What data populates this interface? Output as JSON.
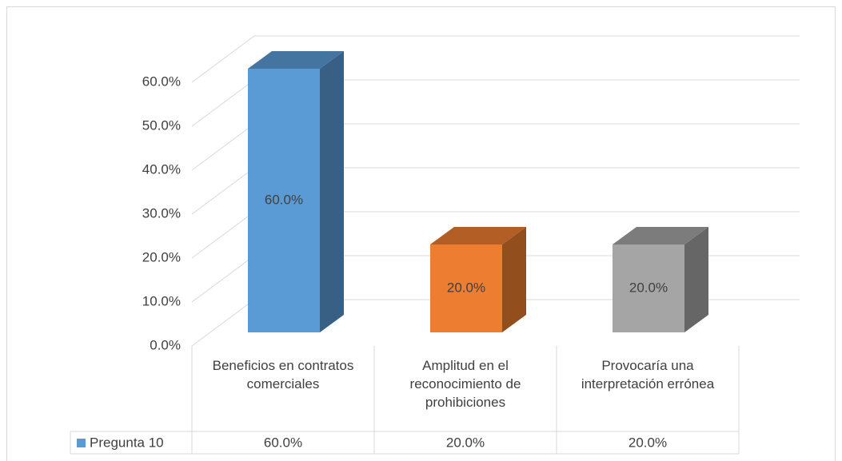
{
  "chart_data": {
    "type": "bar3d",
    "categories": [
      "Beneficios en contratos comerciales",
      "Amplitud en el reconocimiento de prohibiciones",
      "Provocaría una interpretación errónea"
    ],
    "series": [
      {
        "name": "Pregunta 10",
        "color": "#5b9bd5",
        "values": [
          60,
          20,
          20
        ],
        "value_labels": [
          "60.0%",
          "20.0%",
          "20.0%"
        ]
      }
    ],
    "bar_colors": [
      "#5b9bd5",
      "#ed7d31",
      "#a5a5a5"
    ],
    "ylim": [
      0,
      60
    ],
    "yticks": [
      {
        "value": 0,
        "label": "0.0%"
      },
      {
        "value": 10,
        "label": "10.0%"
      },
      {
        "value": 20,
        "label": "20.0%"
      },
      {
        "value": 30,
        "label": "30.0%"
      },
      {
        "value": 40,
        "label": "40.0%"
      },
      {
        "value": 50,
        "label": "50.0%"
      },
      {
        "value": 60,
        "label": "60.0%"
      }
    ],
    "grid": true
  }
}
